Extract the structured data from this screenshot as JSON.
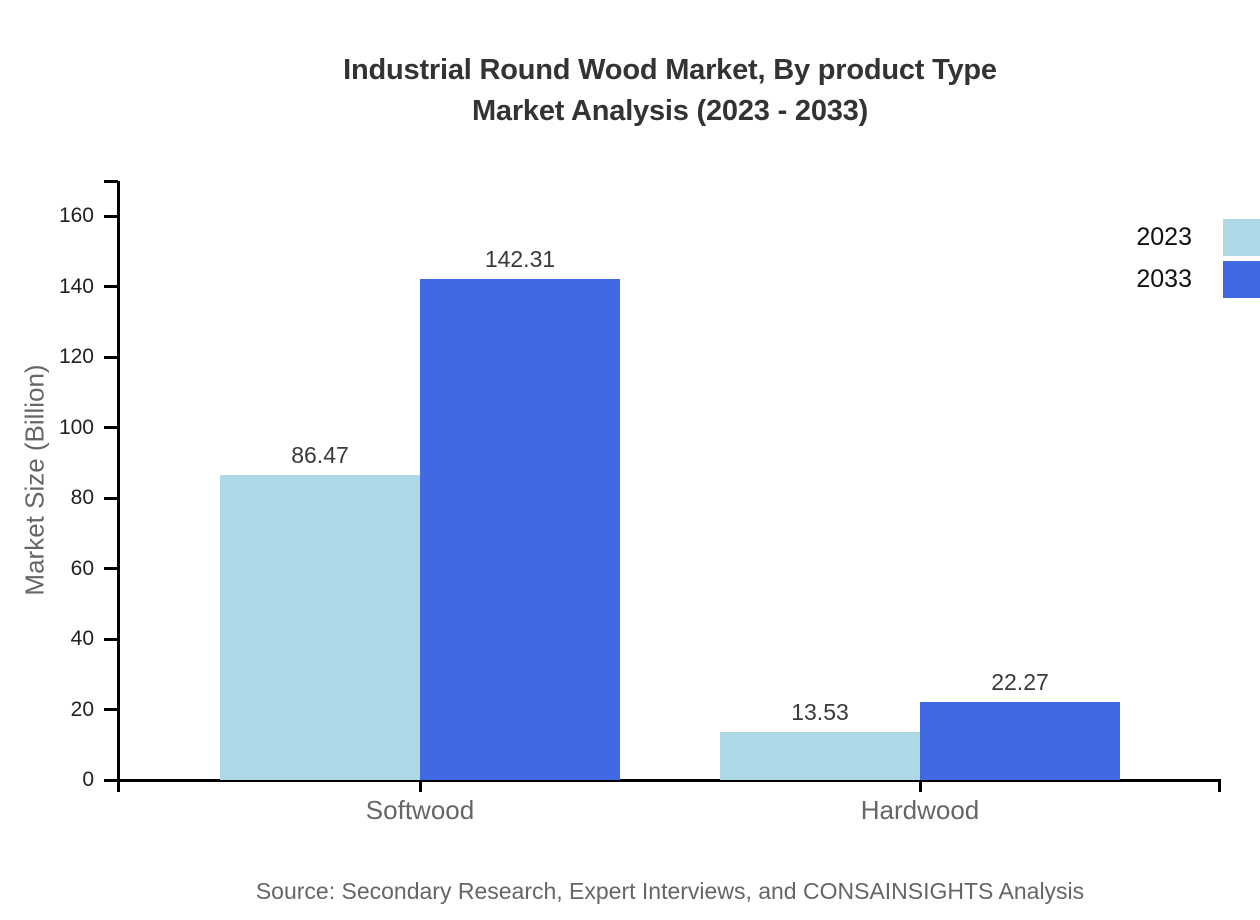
{
  "title": {
    "line1": "Industrial Round Wood Market, By product Type",
    "line2": "Market Analysis (2023 - 2033)"
  },
  "source": "Source: Secondary Research, Expert Interviews, and CONSAINSIGHTS Analysis",
  "colors": {
    "axis": "#000000",
    "title_text": "#333333",
    "tick_label": "#222222",
    "category_label": "#666666",
    "value_label": "#3a3a3a",
    "ylabel_text": "#666666",
    "source_text": "#666666",
    "legend_text": "#111111",
    "series_2023": "#ADD8E6",
    "series_2033": "#4169E1",
    "background": "#ffffff"
  },
  "chart_data": {
    "type": "bar",
    "title": "Industrial Round Wood Market, By product Type Market Analysis (2023 - 2033)",
    "categories": [
      "Softwood",
      "Hardwood"
    ],
    "series": [
      {
        "name": "2023",
        "color": "#ADD8E6",
        "values": [
          86.47,
          13.53
        ]
      },
      {
        "name": "2033",
        "color": "#4169E1",
        "values": [
          142.31,
          22.27
        ]
      }
    ],
    "xlabel": "",
    "ylabel": "Market Size (Billion)",
    "ylim": [
      0,
      170
    ],
    "yticks": [
      0,
      20,
      40,
      60,
      80,
      100,
      120,
      140,
      160
    ],
    "grid": false,
    "legend_position": "top-right",
    "value_labels": true,
    "value_label_format": "2dp"
  }
}
